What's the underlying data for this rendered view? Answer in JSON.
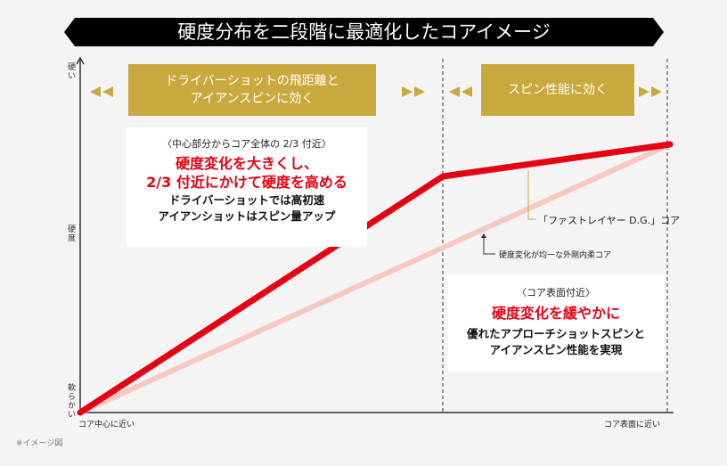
{
  "title": "硬度分布を二段階に最適化したコアイメージ",
  "zones": [
    {
      "label_line1": "ドライバーショットの飛距離と",
      "label_line2": "アイアンスピンに効く"
    },
    {
      "label_line1": "スピン性能に効く"
    }
  ],
  "axis": {
    "y_top": "硬い",
    "y_mid": "硬度",
    "y_bottom": "軟らかい",
    "x_left": "コア中心に近い",
    "x_right": "コア表面に近い"
  },
  "inner_box": {
    "heading": "〈中心部分からコア全体の 2/3 付近〉",
    "red_line1": "硬度変化を大きくし、",
    "red_line2": "2/3 付近にかけて硬度を高める",
    "body_line1": "ドライバーショットでは高初速",
    "body_line2": "アイアンショットはスピン量アップ"
  },
  "outer_box": {
    "heading": "〈コア表面付近〉",
    "red_line": "硬度変化を緩やかに",
    "body_line1": "優れたアプローチショットスピンと",
    "body_line2": "アイアンスピン性能を実現"
  },
  "callouts": {
    "dg_core": "「ファストレイヤー D.G.」コア",
    "uniform_core": "硬度変化が均一な外剛内柔コア"
  },
  "note": "※イメージ図",
  "colors": {
    "gold": "#c9a93e",
    "red": "#e50012",
    "pink": "#f7c9c0",
    "black": "#000000"
  }
}
